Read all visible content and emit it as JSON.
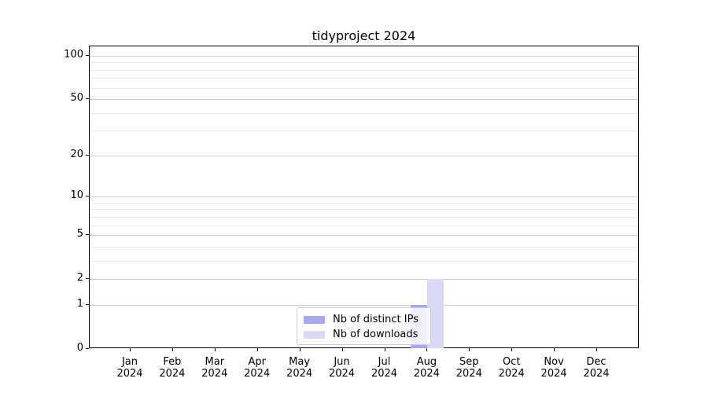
{
  "title": "tidyproject 2024",
  "legend": {
    "items": [
      {
        "label": "Nb of distinct IPs",
        "color": "#a8a8ee"
      },
      {
        "label": "Nb of downloads",
        "color": "#d9d9f6"
      }
    ]
  },
  "chart_data": {
    "type": "bar",
    "title": "tidyproject 2024",
    "categories": [
      "Jan 2024",
      "Feb 2024",
      "Mar 2024",
      "Apr 2024",
      "May 2024",
      "Jun 2024",
      "Jul 2024",
      "Aug 2024",
      "Sep 2024",
      "Oct 2024",
      "Nov 2024",
      "Dec 2024"
    ],
    "series": [
      {
        "name": "Nb of distinct IPs",
        "color": "#a8a8ee",
        "values": [
          0,
          0,
          0,
          0,
          0,
          0,
          0,
          1,
          0,
          0,
          0,
          0
        ]
      },
      {
        "name": "Nb of downloads",
        "color": "#d9d9f6",
        "values": [
          0,
          0,
          0,
          0,
          0,
          0,
          0,
          2,
          0,
          0,
          0,
          0
        ]
      }
    ],
    "yscale": "log1p",
    "ylim": [
      0,
      116
    ],
    "yticks": [
      0,
      1,
      2,
      5,
      10,
      20,
      50,
      100
    ],
    "minor_gridlines": [
      3,
      4,
      6,
      7,
      8,
      9,
      30,
      40,
      60,
      70,
      80,
      90
    ],
    "grid": true,
    "legend_position": "lower center",
    "xlabel": "",
    "ylabel": ""
  }
}
